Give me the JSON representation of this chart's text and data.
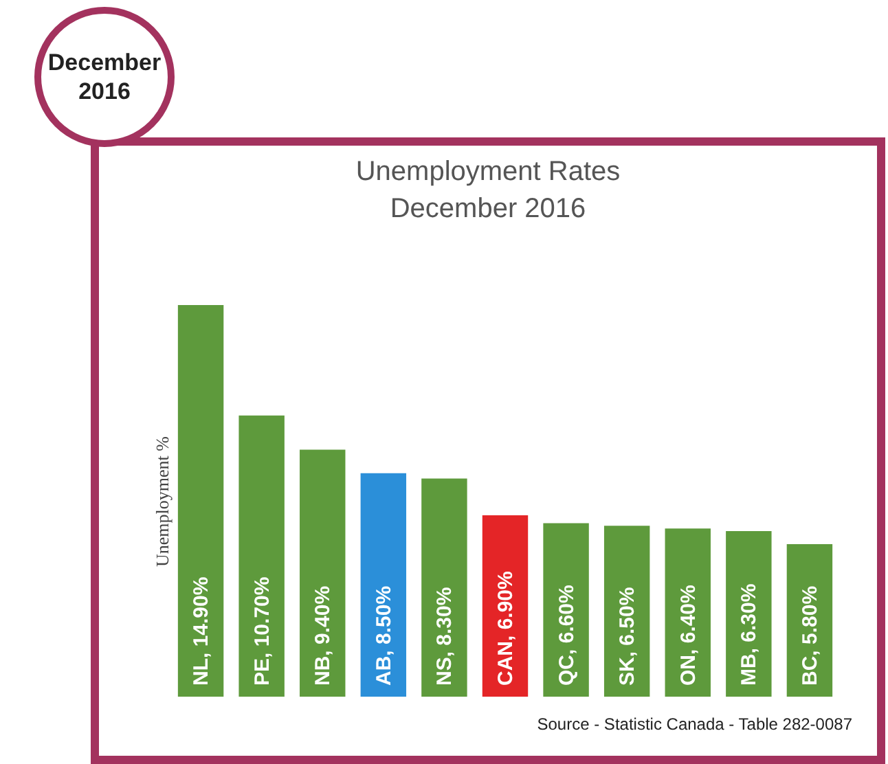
{
  "chart_data": {
    "type": "bar",
    "title": "Unemployment Rates",
    "subtitle": "December 2016",
    "ylabel": "Unemployment %",
    "categories": [
      null,
      null,
      null,
      null,
      null,
      null,
      null,
      null,
      null,
      null,
      null
    ],
    "values": [
      14.9,
      10.7,
      9.4,
      8.5,
      8.3,
      6.9,
      6.6,
      6.5,
      6.4,
      6.3,
      5.8
    ],
    "value_labels": [
      "NL, 14.90%",
      "PE, 10.70%",
      "NB, 9.40%",
      "AB, 8.50%",
      "NS, 8.30%",
      "CAN, 6.90%",
      "QC, 6.60%",
      "SK, 6.50%",
      "ON, 6.40%",
      "MB, 6.30%",
      "BC, 5.80%"
    ],
    "colors": [
      "#5e9a3c",
      "#5e9a3c",
      "#5e9a3c",
      "#2b8fd9",
      "#5e9a3c",
      "#e42527",
      "#5e9a3c",
      "#5e9a3c",
      "#5e9a3c",
      "#5e9a3c",
      "#5e9a3c"
    ],
    "tick_labels": false,
    "grid": false,
    "annotations": [
      "December 2016",
      "Source - Statistic Canada - Table 282-0087"
    ]
  }
}
